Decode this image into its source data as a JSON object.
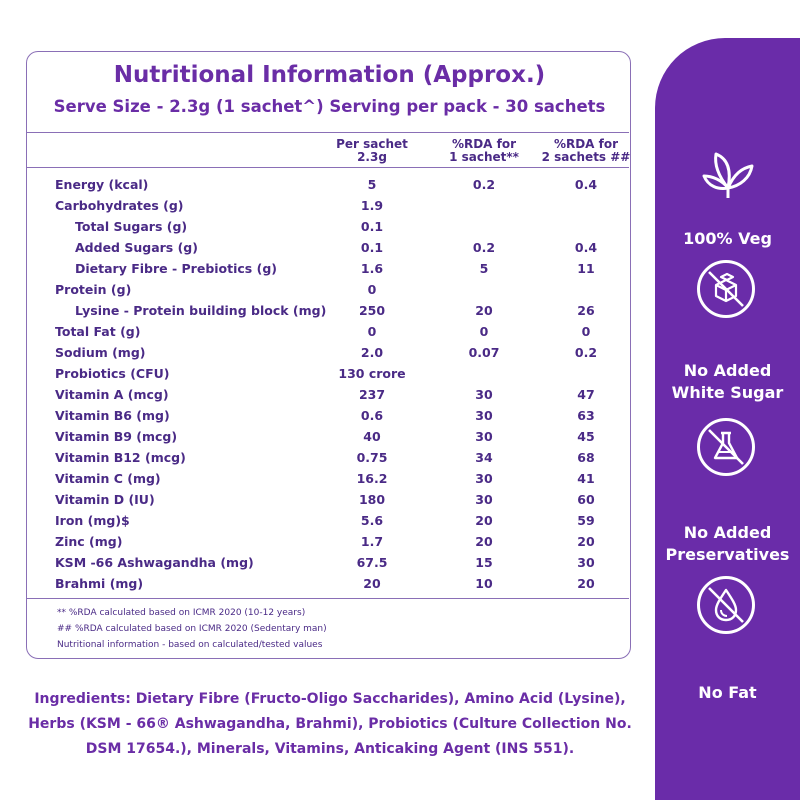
{
  "panel": {
    "title": "Nutritional Information (Approx.)",
    "subtitle": "Serve Size - 2.3g (1 sachet^) Serving per pack - 30 sachets",
    "columns": [
      {
        "line1": "Per sachet",
        "line2": "2.3g"
      },
      {
        "line1": "%RDA for",
        "line2": "1 sachet**"
      },
      {
        "line1": "%RDA for",
        "line2": "2 sachets ##"
      }
    ],
    "rows": [
      {
        "name": "Energy (kcal)",
        "v1": "5",
        "v2": "0.2",
        "v3": "0.4",
        "indent": false
      },
      {
        "name": "Carbohydrates (g)",
        "v1": "1.9",
        "v2": "",
        "v3": "",
        "indent": false
      },
      {
        "name": "Total Sugars (g)",
        "v1": "0.1",
        "v2": "",
        "v3": "",
        "indent": true
      },
      {
        "name": "Added Sugars (g)",
        "v1": "0.1",
        "v2": "0.2",
        "v3": "0.4",
        "indent": true
      },
      {
        "name": "Dietary Fibre - Prebiotics (g)",
        "v1": "1.6",
        "v2": "5",
        "v3": "11",
        "indent": true
      },
      {
        "name": "Protein (g)",
        "v1": "0",
        "v2": "",
        "v3": "",
        "indent": false
      },
      {
        "name": "Lysine - Protein building block  (mg)",
        "v1": "250",
        "v2": "20",
        "v3": "26",
        "indent": true
      },
      {
        "name": "Total Fat (g)",
        "v1": "0",
        "v2": "0",
        "v3": "0",
        "indent": false
      },
      {
        "name": "Sodium (mg)",
        "v1": "2.0",
        "v2": "0.07",
        "v3": "0.2",
        "indent": false
      },
      {
        "name": "Probiotics (CFU)",
        "v1": "130 crore",
        "v2": "",
        "v3": "",
        "indent": false
      },
      {
        "name": "Vitamin A (mcg)",
        "v1": "237",
        "v2": "30",
        "v3": "47",
        "indent": false
      },
      {
        "name": "Vitamin B6 (mg)",
        "v1": "0.6",
        "v2": "30",
        "v3": "63",
        "indent": false
      },
      {
        "name": "Vitamin B9 (mcg)",
        "v1": "40",
        "v2": "30",
        "v3": "45",
        "indent": false
      },
      {
        "name": "Vitamin B12 (mcg)",
        "v1": "0.75",
        "v2": "34",
        "v3": "68",
        "indent": false
      },
      {
        "name": "Vitamin C (mg)",
        "v1": "16.2",
        "v2": "30",
        "v3": "41",
        "indent": false
      },
      {
        "name": "Vitamin D (IU)",
        "v1": "180",
        "v2": "30",
        "v3": "60",
        "indent": false
      },
      {
        "name": "Iron (mg)$",
        "v1": "5.6",
        "v2": "20",
        "v3": "59",
        "indent": false
      },
      {
        "name": "Zinc (mg)",
        "v1": "1.7",
        "v2": "20",
        "v3": "20",
        "indent": false
      },
      {
        "name": "KSM -66 Ashwagandha (mg)",
        "v1": "67.5",
        "v2": "15",
        "v3": "30",
        "indent": false
      },
      {
        "name": "Brahmi (mg)",
        "v1": "20",
        "v2": "10",
        "v3": "20",
        "indent": false
      }
    ],
    "notes": [
      "** %RDA calculated based on ICMR 2020 (10-12 years)",
      "## %RDA calculated based on ICMR 2020 (Sedentary man)",
      "Nutritional information - based on calculated/tested values"
    ]
  },
  "ingredients": [
    "Ingredients: Dietary Fibre (Fructo-Oligo Saccharides), Amino Acid (Lysine),",
    "Herbs (KSM - 66® Ashwagandha, Brahmi), Probiotics (Culture Collection No.",
    "DSM 17654.), Minerals, Vitamins, Anticaking Agent (INS 551)."
  ],
  "badges": [
    {
      "icon": "leaf-icon",
      "line1": "100% Veg",
      "line2": ""
    },
    {
      "icon": "no-sugar-cubes-icon",
      "line1": "No Added",
      "line2": "White Sugar"
    },
    {
      "icon": "no-flask-icon",
      "line1": "No Added",
      "line2": "Preservatives"
    },
    {
      "icon": "no-fat-drop-icon",
      "line1": "No Fat",
      "line2": ""
    }
  ],
  "colors": {
    "accent": "#6a2ca9",
    "title": "#6a2da6",
    "text": "#4a2a86",
    "border": "#8a6fb6"
  }
}
